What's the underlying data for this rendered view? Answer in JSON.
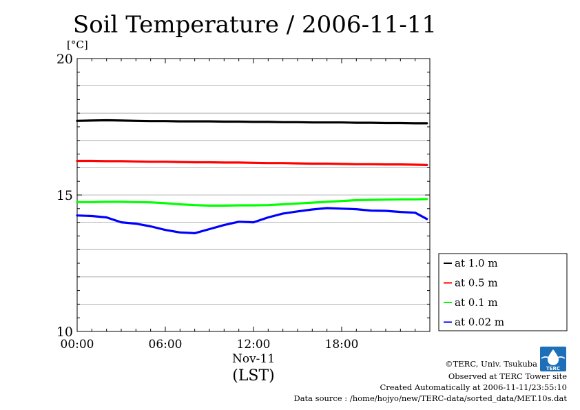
{
  "chart_data": {
    "type": "line",
    "title": "Soil Temperature / 2006-11-11",
    "unit_label": "[°C]",
    "xlabel_date": "Nov-11",
    "xlabel_tz": "(LST)",
    "x_ticks": [
      {
        "hour": 0,
        "label": "00:00"
      },
      {
        "hour": 6,
        "label": "06:00"
      },
      {
        "hour": 12,
        "label": "12:00"
      },
      {
        "hour": 18,
        "label": "18:00"
      }
    ],
    "y_ticks": [
      {
        "value": 10,
        "label": "10"
      },
      {
        "value": 15,
        "label": "15"
      },
      {
        "value": 20,
        "label": "20"
      }
    ],
    "xlim": [
      0,
      24
    ],
    "ylim": [
      10,
      20
    ],
    "grid": "horizontal",
    "legend_position": "right",
    "x_hours": [
      0,
      1,
      2,
      3,
      4,
      5,
      6,
      7,
      8,
      9,
      10,
      11,
      12,
      13,
      14,
      15,
      16,
      17,
      18,
      19,
      20,
      21,
      22,
      23,
      23.8
    ],
    "series": [
      {
        "name": "at 1.0 m",
        "color": "#000000",
        "values": [
          17.72,
          17.73,
          17.74,
          17.73,
          17.72,
          17.71,
          17.71,
          17.7,
          17.7,
          17.7,
          17.69,
          17.69,
          17.68,
          17.68,
          17.67,
          17.67,
          17.66,
          17.66,
          17.66,
          17.65,
          17.65,
          17.64,
          17.64,
          17.63,
          17.63
        ]
      },
      {
        "name": "at 0.5 m",
        "color": "#ff0000",
        "values": [
          16.25,
          16.25,
          16.24,
          16.24,
          16.23,
          16.22,
          16.22,
          16.21,
          16.2,
          16.2,
          16.19,
          16.19,
          16.18,
          16.17,
          16.17,
          16.16,
          16.15,
          16.15,
          16.14,
          16.13,
          16.13,
          16.12,
          16.12,
          16.11,
          16.1
        ]
      },
      {
        "name": "at 0.1 m",
        "color": "#00ff00",
        "values": [
          14.74,
          14.74,
          14.75,
          14.75,
          14.74,
          14.73,
          14.7,
          14.66,
          14.63,
          14.61,
          14.61,
          14.62,
          14.62,
          14.63,
          14.66,
          14.69,
          14.72,
          14.75,
          14.78,
          14.81,
          14.82,
          14.83,
          14.84,
          14.84,
          14.85
        ]
      },
      {
        "name": "at 0.02 m",
        "color": "#0000ff",
        "values": [
          14.25,
          14.23,
          14.18,
          14.0,
          13.95,
          13.85,
          13.72,
          13.63,
          13.6,
          13.75,
          13.9,
          14.02,
          14.0,
          14.18,
          14.32,
          14.4,
          14.47,
          14.52,
          14.5,
          14.48,
          14.43,
          14.42,
          14.38,
          14.35,
          14.12
        ]
      }
    ]
  },
  "logo_text": "TERC",
  "footer": {
    "copyright": "©TERC, Univ. Tsukuba",
    "observed": "Observed at TERC Tower site",
    "created": "Created Automatically at 2006-11-11/23:55:10",
    "source": "Data source : /home/hojyo/new/TERC-data/sorted_data/MET.10s.dat"
  }
}
